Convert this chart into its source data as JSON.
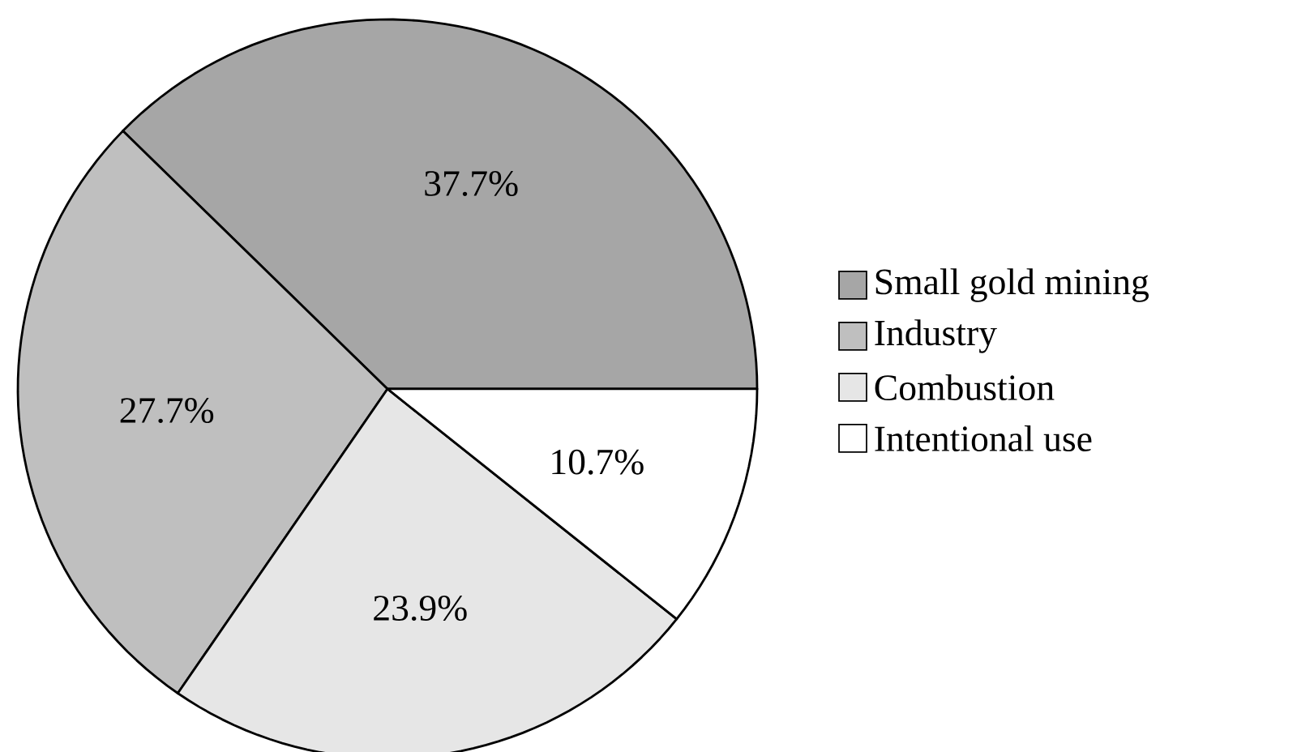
{
  "chart_data": {
    "type": "pie",
    "categories": [
      "Small gold mining",
      "Industry",
      "Combustion",
      "Intentional use"
    ],
    "values": [
      37.7,
      27.7,
      23.9,
      10.7
    ],
    "colors": [
      "#a6a6a6",
      "#bfbfbf",
      "#e6e6e6",
      "#ffffff"
    ],
    "value_labels": [
      "37.7%",
      "27.7%",
      "23.9%",
      "10.7%"
    ],
    "legend": "right"
  }
}
